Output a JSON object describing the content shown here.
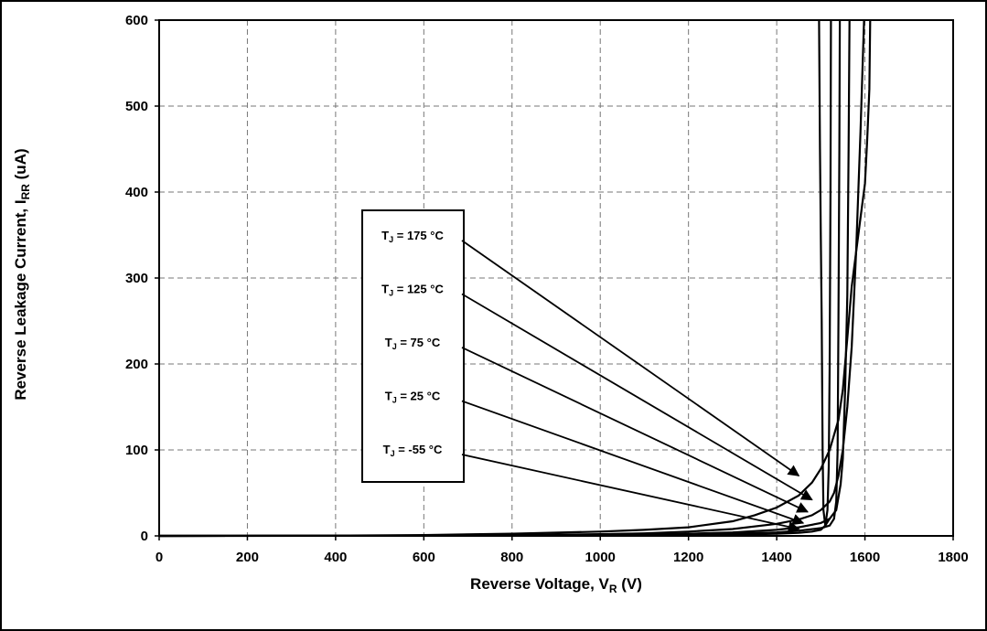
{
  "chart_data": {
    "type": "line",
    "xlabel": {
      "main": "Reverse Voltage, V",
      "sub": "R",
      "unit": " (V)"
    },
    "ylabel": {
      "main": "Reverse Leakage Current, I",
      "sub": "RR",
      "unit": " (uA)"
    },
    "xlim": [
      0,
      1800
    ],
    "ylim": [
      0,
      600
    ],
    "xticks": [
      "0",
      "200",
      "400",
      "600",
      "800",
      "1000",
      "1200",
      "1400",
      "1600",
      "1800"
    ],
    "yticks": [
      "0",
      "100",
      "200",
      "300",
      "400",
      "500",
      "600"
    ],
    "grid": true,
    "legend_position": "center-left",
    "series": [
      {
        "name": {
          "pre": "T",
          "sub": "J",
          "post": " = 175 °C"
        },
        "points": [
          [
            0,
            0
          ],
          [
            400,
            0.3
          ],
          [
            600,
            1
          ],
          [
            800,
            2.5
          ],
          [
            1000,
            5
          ],
          [
            1100,
            7
          ],
          [
            1200,
            10
          ],
          [
            1300,
            17
          ],
          [
            1350,
            24
          ],
          [
            1400,
            33
          ],
          [
            1450,
            47
          ],
          [
            1480,
            62
          ],
          [
            1500,
            78
          ],
          [
            1520,
            100
          ],
          [
            1540,
            135
          ],
          [
            1550,
            170
          ],
          [
            1560,
            230
          ],
          [
            1570,
            290
          ],
          [
            1580,
            330
          ],
          [
            1590,
            370
          ],
          [
            1600,
            410
          ],
          [
            1605,
            460
          ],
          [
            1610,
            520
          ],
          [
            1612,
            600
          ]
        ],
        "arrow_target": [
          1450,
          70
        ]
      },
      {
        "name": {
          "pre": "T",
          "sub": "J",
          "post": " = 125 °C"
        },
        "points": [
          [
            0,
            0
          ],
          [
            600,
            0.3
          ],
          [
            800,
            1
          ],
          [
            1000,
            2
          ],
          [
            1100,
            3
          ],
          [
            1200,
            5
          ],
          [
            1300,
            8
          ],
          [
            1400,
            14
          ],
          [
            1450,
            19
          ],
          [
            1480,
            24
          ],
          [
            1500,
            30
          ],
          [
            1520,
            40
          ],
          [
            1530,
            50
          ],
          [
            1540,
            70
          ],
          [
            1550,
            100
          ],
          [
            1560,
            150
          ],
          [
            1570,
            220
          ],
          [
            1580,
            330
          ],
          [
            1590,
            470
          ],
          [
            1598,
            600
          ]
        ],
        "arrow_target": [
          1480,
          42
        ]
      },
      {
        "name": {
          "pre": "T",
          "sub": "J",
          "post": " = 75 °C"
        },
        "points": [
          [
            0,
            0
          ],
          [
            600,
            0.2
          ],
          [
            800,
            0.5
          ],
          [
            1000,
            1
          ],
          [
            1200,
            2.5
          ],
          [
            1300,
            4
          ],
          [
            1400,
            7
          ],
          [
            1450,
            10
          ],
          [
            1500,
            15
          ],
          [
            1520,
            20
          ],
          [
            1535,
            30
          ],
          [
            1545,
            60
          ],
          [
            1550,
            90
          ],
          [
            1555,
            170
          ],
          [
            1560,
            280
          ],
          [
            1563,
            450
          ],
          [
            1565,
            600
          ]
        ],
        "arrow_target": [
          1470,
          28
        ]
      },
      {
        "name": {
          "pre": "T",
          "sub": "J",
          "post": " = 25 °C"
        },
        "points": [
          [
            0,
            0
          ],
          [
            800,
            0.2
          ],
          [
            1000,
            0.5
          ],
          [
            1200,
            1.5
          ],
          [
            1300,
            2.5
          ],
          [
            1400,
            4
          ],
          [
            1450,
            6
          ],
          [
            1500,
            9
          ],
          [
            1520,
            12
          ],
          [
            1530,
            20
          ],
          [
            1535,
            40
          ],
          [
            1538,
            100
          ],
          [
            1540,
            250
          ],
          [
            1542,
            450
          ],
          [
            1543,
            600
          ]
        ],
        "arrow_target": [
          1460,
          15
        ]
      },
      {
        "name": {
          "pre": "T",
          "sub": "J",
          "post": " = -55 °C"
        },
        "points": [
          [
            0,
            0
          ],
          [
            800,
            0.1
          ],
          [
            1000,
            0.3
          ],
          [
            1200,
            0.8
          ],
          [
            1300,
            1.5
          ],
          [
            1400,
            2.5
          ],
          [
            1450,
            3.5
          ],
          [
            1480,
            5
          ],
          [
            1500,
            7
          ],
          [
            1510,
            12
          ],
          [
            1515,
            30
          ],
          [
            1518,
            80
          ],
          [
            1520,
            200
          ],
          [
            1522,
            400
          ],
          [
            1523,
            600
          ]
        ],
        "arrow_target": [
          1450,
          8
        ]
      },
      {
        "name": {
          "pre": "",
          "sub": "",
          "post": ""
        },
        "points": [
          [
            1496,
            600
          ],
          [
            1498,
            450
          ],
          [
            1500,
            350
          ],
          [
            1502,
            250
          ],
          [
            1504,
            100
          ],
          [
            1506,
            30
          ],
          [
            1510,
            12
          ],
          [
            1520,
            20
          ]
        ],
        "arrow_target": null
      }
    ]
  }
}
